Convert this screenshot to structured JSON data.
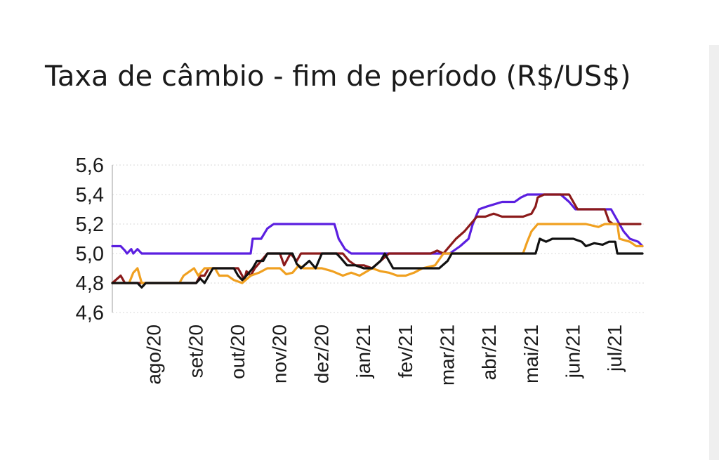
{
  "chart_data": {
    "type": "line",
    "title": "Taxa de câmbio - fim de período (R$/US$)",
    "xlabel": "",
    "ylabel": "",
    "ylim": [
      4.6,
      5.6
    ],
    "yticks": [
      4.6,
      4.8,
      5.0,
      5.2,
      5.4,
      5.6
    ],
    "ytick_labels": [
      "4,6",
      "4,8",
      "5,0",
      "5,2",
      "5,4",
      "5,6"
    ],
    "xlim": [
      0,
      12.7
    ],
    "xticks": [
      1,
      2,
      3,
      4,
      5,
      6,
      7,
      8,
      9,
      10,
      11,
      12
    ],
    "xtick_labels": [
      "ago/20",
      "set/20",
      "out/20",
      "nov/20",
      "dez/20",
      "jan/21",
      "fev/21",
      "mar/21",
      "abr/21",
      "mai/21",
      "jun/21",
      "jul/21"
    ],
    "grid": true,
    "legend": "none",
    "series": [
      {
        "color": "#5b1fe0",
        "points": [
          [
            0,
            5.05
          ],
          [
            0.2,
            5.05
          ],
          [
            0.3,
            5.02
          ],
          [
            0.35,
            5.0
          ],
          [
            0.45,
            5.03
          ],
          [
            0.5,
            5.0
          ],
          [
            0.6,
            5.03
          ],
          [
            0.7,
            5.0
          ],
          [
            3.3,
            5.0
          ],
          [
            3.35,
            5.1
          ],
          [
            3.55,
            5.1
          ],
          [
            3.7,
            5.17
          ],
          [
            3.85,
            5.2
          ],
          [
            5.3,
            5.2
          ],
          [
            5.4,
            5.1
          ],
          [
            5.55,
            5.03
          ],
          [
            5.7,
            5.0
          ],
          [
            8.05,
            5.0
          ],
          [
            8.3,
            5.05
          ],
          [
            8.5,
            5.1
          ],
          [
            8.6,
            5.2
          ],
          [
            8.75,
            5.3
          ],
          [
            8.95,
            5.32
          ],
          [
            9.3,
            5.35
          ],
          [
            9.6,
            5.35
          ],
          [
            9.75,
            5.38
          ],
          [
            9.9,
            5.4
          ],
          [
            10.7,
            5.4
          ],
          [
            10.9,
            5.35
          ],
          [
            11.05,
            5.3
          ],
          [
            11.9,
            5.3
          ],
          [
            12.1,
            5.2
          ],
          [
            12.2,
            5.15
          ],
          [
            12.35,
            5.1
          ],
          [
            12.55,
            5.08
          ],
          [
            12.65,
            5.05
          ]
        ]
      },
      {
        "color": "#8b1a1a",
        "points": [
          [
            0,
            4.8
          ],
          [
            0.2,
            4.85
          ],
          [
            0.3,
            4.8
          ],
          [
            2.0,
            4.8
          ],
          [
            2.1,
            4.85
          ],
          [
            2.2,
            4.85
          ],
          [
            2.3,
            4.9
          ],
          [
            3.0,
            4.9
          ],
          [
            3.1,
            4.85
          ],
          [
            3.15,
            4.82
          ],
          [
            3.2,
            4.88
          ],
          [
            3.3,
            4.85
          ],
          [
            3.4,
            4.9
          ],
          [
            3.55,
            4.95
          ],
          [
            3.7,
            5.0
          ],
          [
            4.0,
            5.0
          ],
          [
            4.1,
            4.92
          ],
          [
            4.25,
            5.0
          ],
          [
            4.4,
            4.95
          ],
          [
            4.5,
            5.0
          ],
          [
            5.5,
            5.0
          ],
          [
            5.65,
            4.95
          ],
          [
            5.8,
            4.92
          ],
          [
            6.0,
            4.92
          ],
          [
            6.2,
            4.9
          ],
          [
            6.4,
            4.95
          ],
          [
            6.6,
            5.0
          ],
          [
            7.6,
            5.0
          ],
          [
            7.75,
            5.02
          ],
          [
            7.9,
            5.0
          ],
          [
            8.2,
            5.1
          ],
          [
            8.4,
            5.15
          ],
          [
            8.55,
            5.2
          ],
          [
            8.7,
            5.25
          ],
          [
            8.9,
            5.25
          ],
          [
            9.1,
            5.27
          ],
          [
            9.3,
            5.25
          ],
          [
            9.8,
            5.25
          ],
          [
            10.0,
            5.27
          ],
          [
            10.1,
            5.32
          ],
          [
            10.15,
            5.38
          ],
          [
            10.3,
            5.4
          ],
          [
            10.9,
            5.4
          ],
          [
            11.0,
            5.35
          ],
          [
            11.1,
            5.3
          ],
          [
            11.75,
            5.3
          ],
          [
            11.85,
            5.22
          ],
          [
            11.95,
            5.2
          ],
          [
            12.6,
            5.2
          ]
        ]
      },
      {
        "color": "#f0a020",
        "points": [
          [
            0,
            4.8
          ],
          [
            0.4,
            4.8
          ],
          [
            0.5,
            4.87
          ],
          [
            0.6,
            4.9
          ],
          [
            0.65,
            4.85
          ],
          [
            0.7,
            4.8
          ],
          [
            1.6,
            4.8
          ],
          [
            1.7,
            4.85
          ],
          [
            1.85,
            4.88
          ],
          [
            1.95,
            4.9
          ],
          [
            2.05,
            4.85
          ],
          [
            2.2,
            4.9
          ],
          [
            2.45,
            4.9
          ],
          [
            2.55,
            4.85
          ],
          [
            2.75,
            4.85
          ],
          [
            2.9,
            4.82
          ],
          [
            3.1,
            4.8
          ],
          [
            3.3,
            4.85
          ],
          [
            3.5,
            4.87
          ],
          [
            3.7,
            4.9
          ],
          [
            4.0,
            4.9
          ],
          [
            4.15,
            4.86
          ],
          [
            4.3,
            4.87
          ],
          [
            4.45,
            4.92
          ],
          [
            4.55,
            4.9
          ],
          [
            5.0,
            4.9
          ],
          [
            5.25,
            4.88
          ],
          [
            5.5,
            4.85
          ],
          [
            5.7,
            4.87
          ],
          [
            5.9,
            4.85
          ],
          [
            6.2,
            4.9
          ],
          [
            6.4,
            4.88
          ],
          [
            6.6,
            4.87
          ],
          [
            6.8,
            4.85
          ],
          [
            7.0,
            4.85
          ],
          [
            7.2,
            4.87
          ],
          [
            7.4,
            4.9
          ],
          [
            7.7,
            4.92
          ],
          [
            7.9,
            5.0
          ],
          [
            9.8,
            5.0
          ],
          [
            9.9,
            5.08
          ],
          [
            10.0,
            5.15
          ],
          [
            10.15,
            5.2
          ],
          [
            11.3,
            5.2
          ],
          [
            11.6,
            5.18
          ],
          [
            11.75,
            5.2
          ],
          [
            12.05,
            5.2
          ],
          [
            12.1,
            5.1
          ],
          [
            12.35,
            5.08
          ],
          [
            12.5,
            5.05
          ],
          [
            12.65,
            5.05
          ]
        ]
      },
      {
        "color": "#111111",
        "points": [
          [
            0,
            4.8
          ],
          [
            0.6,
            4.8
          ],
          [
            0.7,
            4.77
          ],
          [
            0.8,
            4.8
          ],
          [
            2.0,
            4.8
          ],
          [
            2.1,
            4.83
          ],
          [
            2.2,
            4.8
          ],
          [
            2.3,
            4.85
          ],
          [
            2.4,
            4.9
          ],
          [
            2.9,
            4.9
          ],
          [
            3.0,
            4.85
          ],
          [
            3.1,
            4.82
          ],
          [
            3.2,
            4.85
          ],
          [
            3.35,
            4.9
          ],
          [
            3.45,
            4.95
          ],
          [
            3.6,
            4.95
          ],
          [
            3.7,
            5.0
          ],
          [
            4.3,
            5.0
          ],
          [
            4.4,
            4.93
          ],
          [
            4.5,
            4.9
          ],
          [
            4.7,
            4.95
          ],
          [
            4.85,
            4.9
          ],
          [
            5.0,
            5.0
          ],
          [
            5.35,
            5.0
          ],
          [
            5.45,
            4.97
          ],
          [
            5.6,
            4.92
          ],
          [
            5.8,
            4.92
          ],
          [
            6.0,
            4.9
          ],
          [
            6.2,
            4.9
          ],
          [
            6.4,
            4.95
          ],
          [
            6.5,
            5.0
          ],
          [
            6.7,
            4.9
          ],
          [
            7.8,
            4.9
          ],
          [
            8.0,
            4.95
          ],
          [
            8.1,
            5.0
          ],
          [
            10.1,
            5.0
          ],
          [
            10.2,
            5.1
          ],
          [
            10.35,
            5.08
          ],
          [
            10.5,
            5.1
          ],
          [
            11.0,
            5.1
          ],
          [
            11.2,
            5.08
          ],
          [
            11.3,
            5.05
          ],
          [
            11.5,
            5.07
          ],
          [
            11.7,
            5.06
          ],
          [
            11.85,
            5.08
          ],
          [
            12.0,
            5.08
          ],
          [
            12.05,
            5.0
          ],
          [
            12.65,
            5.0
          ]
        ]
      }
    ]
  }
}
